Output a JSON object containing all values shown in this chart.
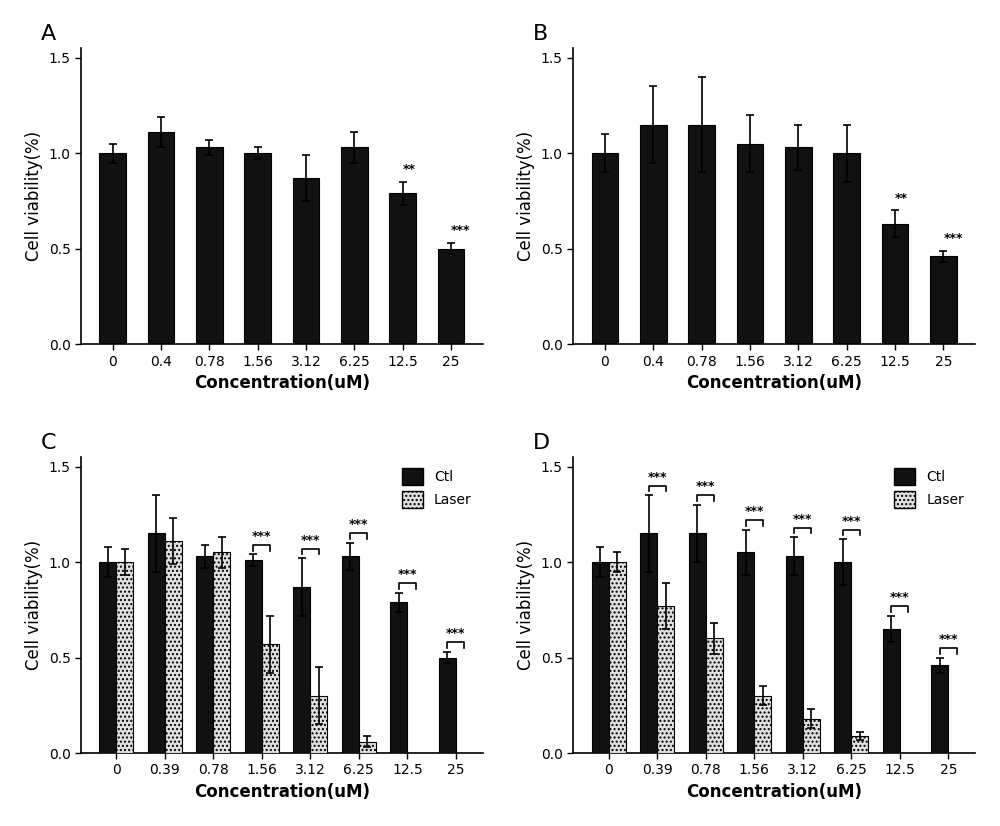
{
  "panel_A": {
    "label": "A",
    "categories": [
      "0",
      "0.4",
      "0.78",
      "1.56",
      "3.12",
      "6.25",
      "12.5",
      "25"
    ],
    "ctl_values": [
      1.0,
      1.11,
      1.03,
      1.0,
      0.87,
      1.03,
      0.79,
      0.5
    ],
    "ctl_errors": [
      0.05,
      0.08,
      0.04,
      0.03,
      0.12,
      0.08,
      0.06,
      0.03
    ],
    "significance": [
      null,
      null,
      null,
      null,
      null,
      null,
      "**",
      "***"
    ],
    "xlabel": "Concentration(uM)",
    "ylabel": "Cell viability(%)",
    "ylim": [
      0.0,
      1.55
    ]
  },
  "panel_B": {
    "label": "B",
    "categories": [
      "0",
      "0.4",
      "0.78",
      "1.56",
      "3.12",
      "6.25",
      "12.5",
      "25"
    ],
    "ctl_values": [
      1.0,
      1.15,
      1.15,
      1.05,
      1.03,
      1.0,
      0.63,
      0.46
    ],
    "ctl_errors": [
      0.1,
      0.2,
      0.25,
      0.15,
      0.12,
      0.15,
      0.07,
      0.03
    ],
    "significance": [
      null,
      null,
      null,
      null,
      null,
      null,
      "**",
      "***"
    ],
    "xlabel": "Concentration(uM)",
    "ylabel": "Cell viability(%)",
    "ylim": [
      0.0,
      1.55
    ]
  },
  "panel_C": {
    "label": "C",
    "categories": [
      "0",
      "0.39",
      "0.78",
      "1.56",
      "3.12",
      "6.25",
      "12.5",
      "25"
    ],
    "ctl_values": [
      1.0,
      1.15,
      1.03,
      1.01,
      0.87,
      1.03,
      0.79,
      0.5
    ],
    "ctl_errors": [
      0.08,
      0.2,
      0.06,
      0.03,
      0.15,
      0.07,
      0.05,
      0.03
    ],
    "laser_values": [
      1.0,
      1.11,
      1.05,
      0.57,
      0.3,
      0.06,
      null,
      null
    ],
    "laser_errors": [
      0.07,
      0.12,
      0.08,
      0.15,
      0.15,
      0.03,
      null,
      null
    ],
    "bracket_indices": [
      3,
      4,
      5,
      6,
      7
    ],
    "bracket_significance": [
      "***",
      "***",
      "***",
      "***",
      "***"
    ],
    "xlabel": "Concentration(uM)",
    "ylabel": "Cell viability(%)",
    "ylim": [
      0.0,
      1.55
    ],
    "legend_labels": [
      "Ctl",
      "Laser"
    ]
  },
  "panel_D": {
    "label": "D",
    "categories": [
      "0",
      "0.39",
      "0.78",
      "1.56",
      "3.12",
      "6.25",
      "12.5",
      "25"
    ],
    "ctl_values": [
      1.0,
      1.15,
      1.15,
      1.05,
      1.03,
      1.0,
      0.65,
      0.46
    ],
    "ctl_errors": [
      0.08,
      0.2,
      0.15,
      0.12,
      0.1,
      0.12,
      0.07,
      0.04
    ],
    "laser_values": [
      1.0,
      0.77,
      0.6,
      0.3,
      0.18,
      0.09,
      null,
      null
    ],
    "laser_errors": [
      0.05,
      0.12,
      0.08,
      0.05,
      0.05,
      0.02,
      null,
      null
    ],
    "bracket_indices": [
      1,
      2,
      3,
      4,
      5,
      6,
      7
    ],
    "bracket_significance": [
      "***",
      "***",
      "***",
      "***",
      "***",
      "***",
      "***"
    ],
    "xlabel": "Concentration(uM)",
    "ylabel": "Cell viability(%)",
    "ylim": [
      0.0,
      1.55
    ],
    "legend_labels": [
      "Ctl",
      "Laser"
    ]
  },
  "bar_color_ctl": "#111111",
  "bar_color_laser_face": "#e0e0e0",
  "bar_edgecolor": "#000000",
  "background_color": "#ffffff",
  "tick_fontsize": 10,
  "label_fontsize": 12,
  "sig_fontsize": 9,
  "panel_label_fontsize": 16
}
